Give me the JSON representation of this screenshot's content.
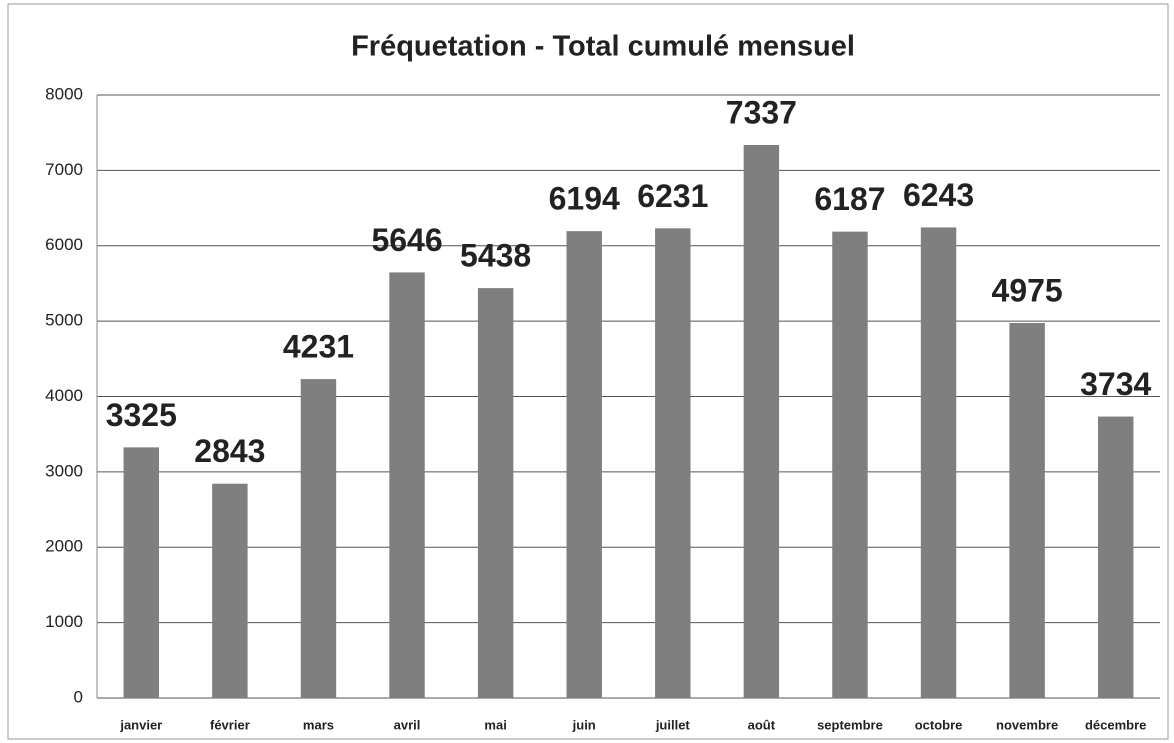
{
  "chart_data": {
    "type": "bar",
    "title": "Fréquetation - Total cumulé mensuel",
    "categories": [
      "janvier",
      "février",
      "mars",
      "avril",
      "mai",
      "juin",
      "juillet",
      "août",
      "septembre",
      "octobre",
      "novembre",
      "décembre"
    ],
    "values": [
      3325,
      2843,
      4231,
      5646,
      5438,
      6194,
      6231,
      7337,
      6187,
      6243,
      4975,
      3734
    ],
    "color": "#7f7f7f",
    "ylim": [
      0,
      8000
    ],
    "yticks": [
      0,
      1000,
      2000,
      3000,
      4000,
      5000,
      6000,
      7000,
      8000
    ],
    "grid": true
  }
}
